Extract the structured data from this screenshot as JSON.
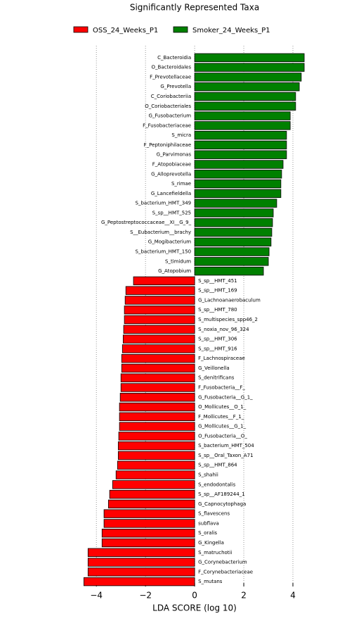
{
  "chart_data": {
    "type": "lda_bar",
    "title": "Significantly Represented Taxa",
    "x_label": "LDA SCORE (log 10)",
    "categories": [
      "C_Bacteroidia",
      "O_Bacteroidales",
      "F_Prevotellaceae",
      "G_Prevotella",
      "C_Coriobacteriia",
      "O_Coriobacteriales",
      "G_Fusobacterium",
      "F_Fusobacteriaceae",
      "S_micra",
      "F_Peptoniphilaceae",
      "G_Parvimonas",
      "F_Atopobiaceae",
      "G_Alloprevotella",
      "S_rimae",
      "G_Lancefieldella",
      "S_bacterium_HMT_349",
      "S_sp__HMT_525",
      "G_Peptostreptococcaceae__XI__G_9_",
      "S__Eubacterium__brachy",
      "G_Mogibacterium",
      "S_bacterium_HMT_150",
      "S_timidum",
      "G_Atopobium",
      "S_sp__HMT_451",
      "S_sp__HMT_169",
      "G_Lachnoanaerobaculum",
      "S_sp__HMT_780",
      "S_multispecies_spp46_2",
      "S_noxia_nov_96_324",
      "S_sp__HMT_306",
      "S_sp__HMT_916",
      "F_Lachnospiraceae",
      "G_Veillonella",
      "S_denitrificans",
      "F_Fusobacteria__F_",
      "G_Fusobacteria__G_1_",
      "O_Mollicutes__O_1_",
      "F_Mollicutes__F_1_",
      "G_Mollicutes__G_1_",
      "O_Fusobacteria__O_",
      "S_bacterium_HMT_504",
      "S_sp__Oral_Taxon_A71",
      "S_sp__HMT_864",
      "S_shahii",
      "S_endodontalis",
      "S_sp__AF189244_1",
      "G_Capnocytophaga",
      "S_flavescens",
      "subflava",
      "S_oralis",
      "G_Kingella",
      "S_matruchotii",
      "G_Corynebacterium",
      "F_Corynebacteriaceae",
      "S_mutans"
    ],
    "series": [
      {
        "name": "OSS_24_Weeks_P1",
        "color": "#ff0000",
        "values": [
          null,
          null,
          null,
          null,
          null,
          null,
          null,
          null,
          null,
          null,
          null,
          null,
          null,
          null,
          null,
          null,
          null,
          null,
          null,
          null,
          null,
          null,
          null,
          -2.49,
          -2.8,
          -2.83,
          -2.86,
          -2.86,
          -2.89,
          -2.91,
          -2.94,
          -2.97,
          -2.97,
          -3.0,
          -3.0,
          -3.03,
          -3.06,
          -3.06,
          -3.06,
          -3.09,
          -3.11,
          -3.11,
          -3.14,
          -3.2,
          -3.34,
          -3.46,
          -3.51,
          -3.69,
          -3.69,
          -3.77,
          -3.77,
          -4.34,
          -4.34,
          -4.34,
          -4.51
        ]
      },
      {
        "name": "Smoker_24_Weeks_P1",
        "color": "#008000",
        "values": [
          4.46,
          4.46,
          4.34,
          4.26,
          4.11,
          4.11,
          3.89,
          3.89,
          3.74,
          3.74,
          3.74,
          3.6,
          3.54,
          3.51,
          3.51,
          3.34,
          3.2,
          3.17,
          3.14,
          3.11,
          3.03,
          3.0,
          2.8,
          null,
          null,
          null,
          null,
          null,
          null,
          null,
          null,
          null,
          null,
          null,
          null,
          null,
          null,
          null,
          null,
          null,
          null,
          null,
          null,
          null,
          null,
          null,
          null,
          null,
          null,
          null,
          null,
          null,
          null,
          null,
          null
        ]
      }
    ],
    "xlim": [
      -4.55,
      4.6
    ],
    "xticks": [
      {
        "value": -4,
        "label": "−4"
      },
      {
        "value": -2,
        "label": "−2"
      },
      0,
      2,
      4
    ],
    "grid": true
  }
}
